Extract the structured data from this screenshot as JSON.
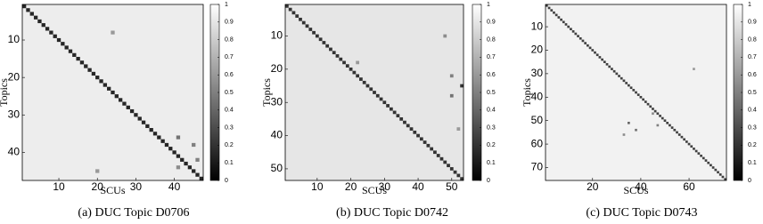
{
  "chart_data": [
    {
      "type": "heatmap",
      "caption": "(a)  DUC Topic D0706",
      "xlabel": "SCUs",
      "ylabel": "Topics",
      "xlim": [
        0.5,
        47.5
      ],
      "ylim": [
        0.5,
        47.5
      ],
      "xticks": [
        10,
        20,
        30,
        40
      ],
      "yticks": [
        10,
        20,
        30,
        40
      ],
      "diagonal": 0.15,
      "off_diagonal": 0.93,
      "cells": [
        [
          36,
          41,
          0.45
        ],
        [
          44,
          41,
          0.55
        ],
        [
          8,
          24,
          0.6
        ],
        [
          42,
          46,
          0.5
        ],
        [
          38,
          45,
          0.5
        ],
        [
          45,
          20,
          0.6
        ]
      ],
      "clim": [
        0,
        1
      ],
      "cticks": [
        0,
        0.1,
        0.2,
        0.3,
        0.4,
        0.5,
        0.6,
        0.7,
        0.8,
        0.9,
        1
      ]
    },
    {
      "type": "heatmap",
      "caption": "(b)  DUC Topic D0742",
      "xlabel": "SCUs",
      "ylabel": "Topics",
      "xlim": [
        0.5,
        53.5
      ],
      "ylim": [
        0.5,
        53.5
      ],
      "xticks": [
        10,
        20,
        30,
        40,
        50
      ],
      "yticks": [
        10,
        20,
        30,
        40,
        50
      ],
      "diagonal": 0.2,
      "off_diagonal": 0.9,
      "cells": [
        [
          25,
          53,
          0.2
        ],
        [
          22,
          50,
          0.5
        ],
        [
          10,
          48,
          0.55
        ],
        [
          28,
          50,
          0.45
        ],
        [
          18,
          22,
          0.6
        ],
        [
          38,
          52,
          0.6
        ]
      ],
      "clim": [
        0,
        1
      ],
      "cticks": [
        0,
        0.1,
        0.2,
        0.3,
        0.4,
        0.5,
        0.6,
        0.7,
        0.8,
        0.9,
        1
      ]
    },
    {
      "type": "heatmap",
      "caption": "(c)  DUC Topic D0743",
      "xlabel": "SCUs",
      "ylabel": "Topics",
      "xlim": [
        0.5,
        75.5
      ],
      "ylim": [
        0.5,
        75.5
      ],
      "xticks": [
        20,
        40,
        60
      ],
      "yticks": [
        10,
        20,
        30,
        40,
        50,
        60,
        70
      ],
      "diagonal": 0.25,
      "off_diagonal": 0.95,
      "cells": [
        [
          51,
          35,
          0.4
        ],
        [
          54,
          38,
          0.45
        ],
        [
          52,
          47,
          0.5
        ],
        [
          28,
          62,
          0.6
        ],
        [
          56,
          33,
          0.55
        ],
        [
          47,
          45,
          0.55
        ]
      ],
      "clim": [
        0,
        1
      ],
      "cticks": [
        0,
        0.1,
        0.2,
        0.3,
        0.4,
        0.5,
        0.6,
        0.7,
        0.8,
        0.9,
        1
      ]
    }
  ]
}
